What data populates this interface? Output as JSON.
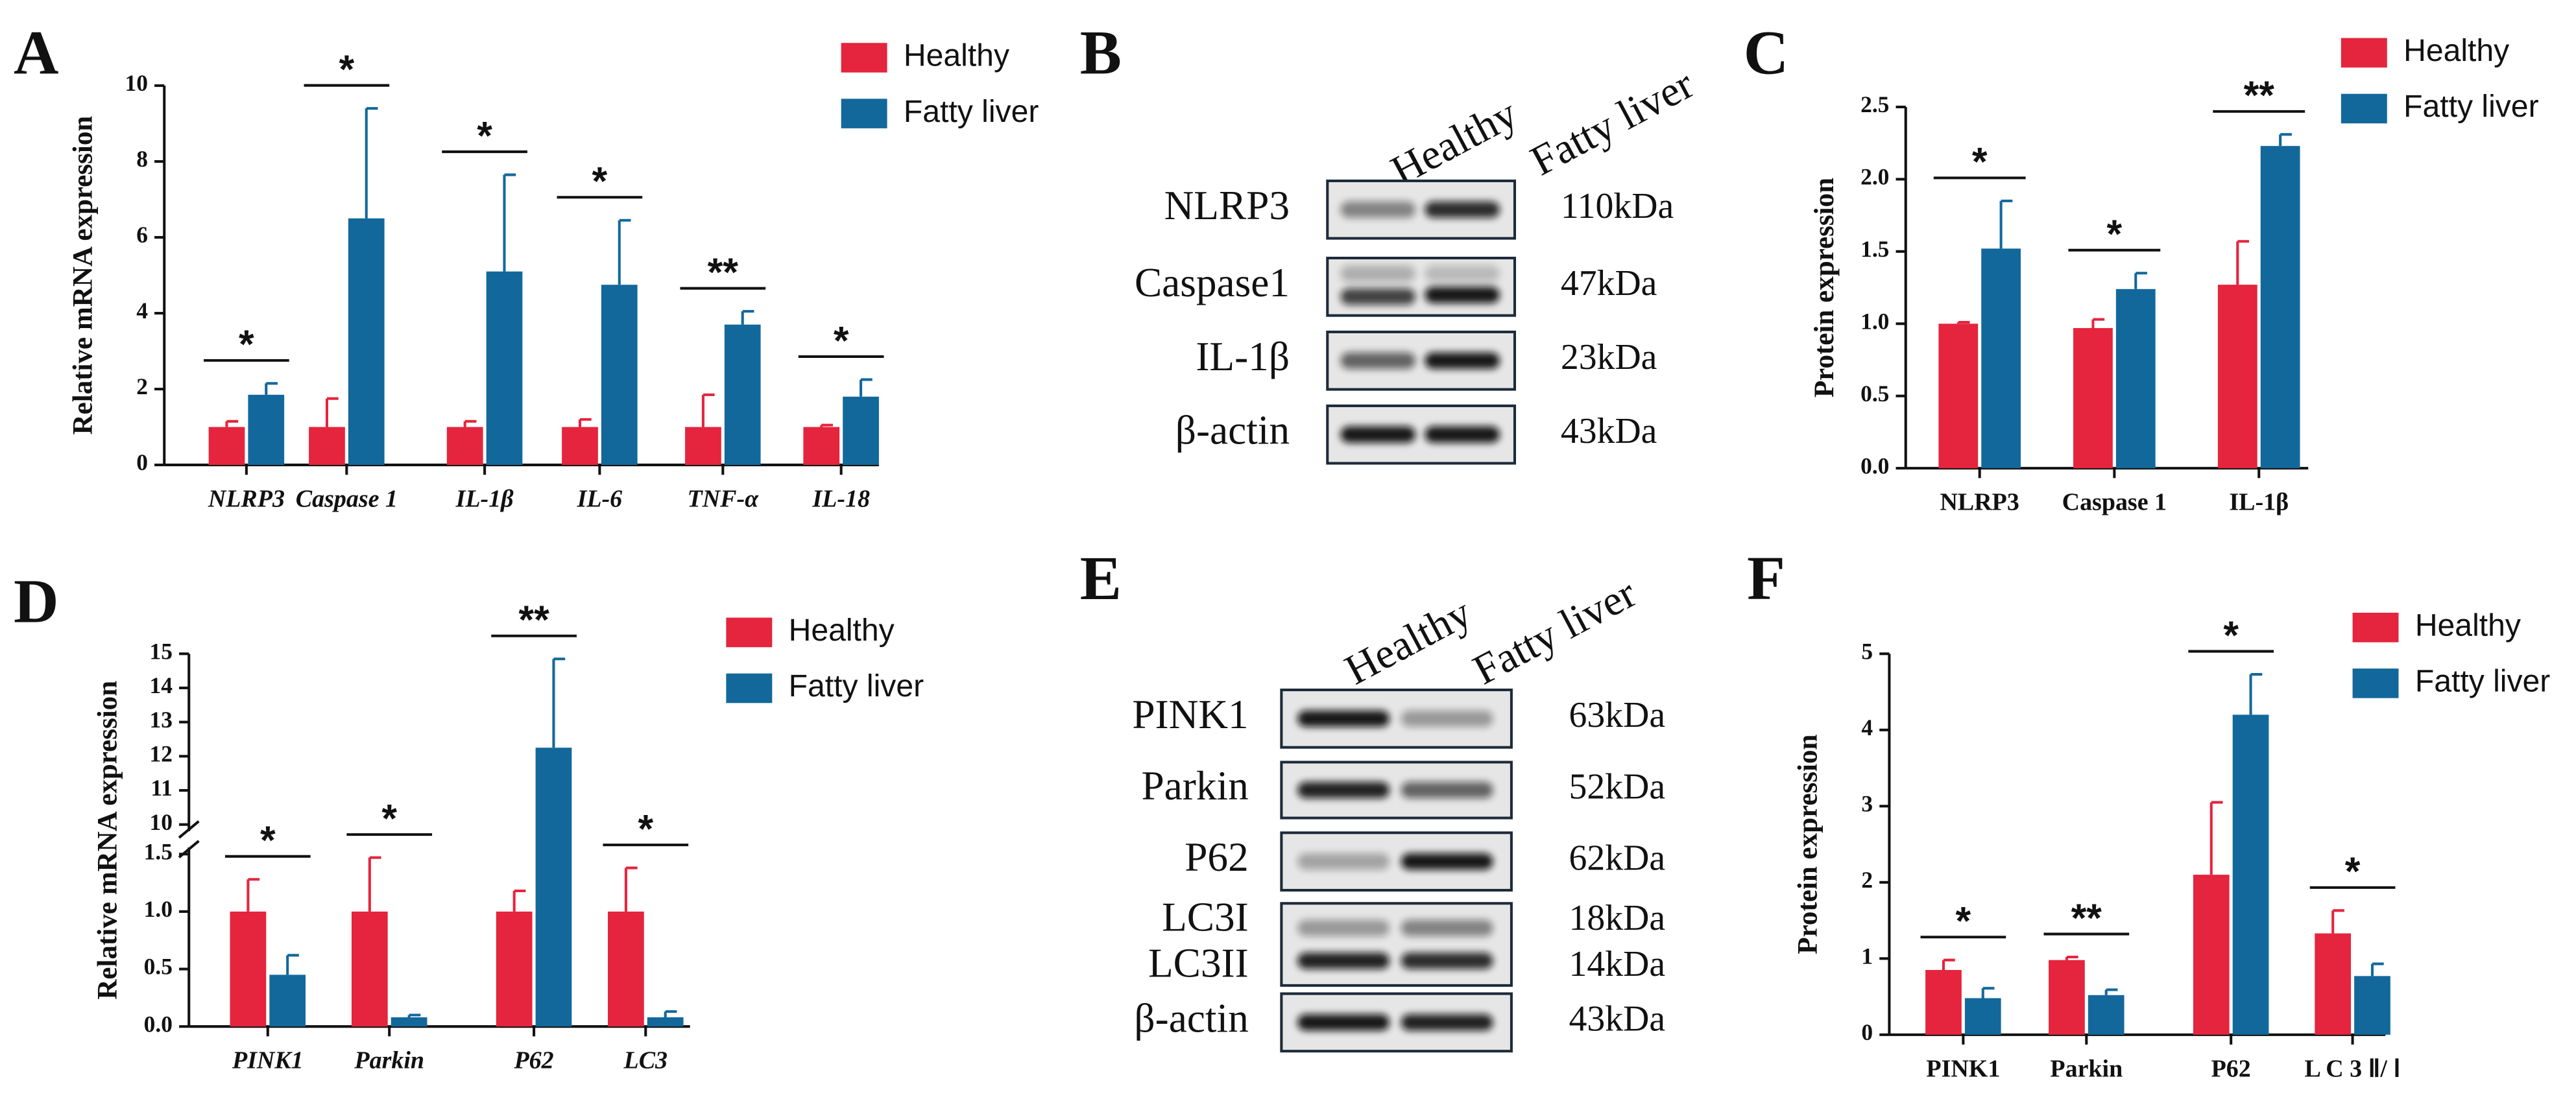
{
  "chart_data": [
    {
      "type": "bar",
      "panel": "A",
      "ylabel": "Relative mRNA expression",
      "categories": [
        "NLRP3",
        "Caspase 1",
        "IL-1β",
        "IL-6",
        "TNF-α",
        "IL-18"
      ],
      "italic_categories": true,
      "series": [
        {
          "name": "Healthy",
          "color": "#e5243d",
          "values": [
            1,
            1,
            1,
            1,
            1,
            1
          ],
          "errors": [
            0.15,
            0.75,
            0.15,
            0.2,
            0.85,
            0.05
          ]
        },
        {
          "name": "Fatty liver",
          "color": "#12689b",
          "values": [
            1.85,
            6.5,
            5.1,
            4.75,
            3.7,
            1.8
          ],
          "errors": [
            0.3,
            2.9,
            2.55,
            1.7,
            0.35,
            0.45
          ]
        }
      ],
      "significance": [
        "*",
        "*",
        "*",
        "*",
        "**",
        "*"
      ],
      "ylim": [
        0,
        10
      ],
      "yticks": [
        0,
        2,
        4,
        6,
        8,
        10
      ]
    },
    {
      "type": "bar",
      "panel": "C",
      "ylabel": "Protein expression",
      "categories": [
        "NLRP3",
        "Caspase 1",
        "IL-1β"
      ],
      "italic_categories": false,
      "series": [
        {
          "name": "Healthy",
          "color": "#e5243d",
          "values": [
            1.0,
            0.97,
            1.27
          ],
          "errors": [
            0.01,
            0.06,
            0.3
          ]
        },
        {
          "name": "Fatty liver",
          "color": "#12689b",
          "values": [
            1.52,
            1.24,
            2.23
          ],
          "errors": [
            0.33,
            0.11,
            0.08
          ]
        }
      ],
      "significance": [
        "*",
        "*",
        "**"
      ],
      "ylim": [
        0,
        2.5
      ],
      "yticks": [
        {
          "value": 0,
          "label": "0.0"
        },
        0.5,
        {
          "value": 1,
          "label": "1.0"
        },
        1.5,
        {
          "value": 2,
          "label": "2.0"
        },
        2.5
      ]
    },
    {
      "type": "bar",
      "panel": "D",
      "ylabel": "Relative mRNA expression",
      "categories": [
        "PINK1",
        "Parkin",
        "P62",
        "LC3"
      ],
      "italic_categories": true,
      "series": [
        {
          "name": "Healthy",
          "color": "#e5243d",
          "values": [
            1,
            1,
            1,
            1
          ],
          "errors": [
            0.28,
            0.47,
            0.18,
            0.38
          ]
        },
        {
          "name": "Fatty liver",
          "color": "#12689b",
          "values": [
            0.45,
            0.08,
            12.25,
            0.08
          ],
          "errors": [
            0.17,
            0.02,
            2.6,
            0.05
          ]
        }
      ],
      "significance": [
        "*",
        "*",
        "**",
        "*"
      ],
      "ylim": [
        0,
        15
      ],
      "ybreak": [
        1.5,
        10
      ],
      "yticks": [
        {
          "value": 0,
          "label": "0.0"
        },
        0.5,
        {
          "value": 1,
          "label": "1.0"
        },
        1.5,
        10,
        11,
        12,
        13,
        14,
        15
      ]
    },
    {
      "type": "bar",
      "panel": "F",
      "ylabel": "Protein expression",
      "categories": [
        "PINK1",
        "Parkin",
        "P62",
        "L C 3 Ⅱ/ Ⅰ"
      ],
      "italic_categories": false,
      "series": [
        {
          "name": "Healthy",
          "color": "#e5243d",
          "values": [
            0.85,
            0.98,
            2.1,
            1.33
          ],
          "errors": [
            0.13,
            0.04,
            0.95,
            0.3
          ]
        },
        {
          "name": "Fatty liver",
          "color": "#12689b",
          "values": [
            0.48,
            0.52,
            4.2,
            0.77
          ],
          "errors": [
            0.13,
            0.07,
            0.53,
            0.16
          ]
        }
      ],
      "significance": [
        "*",
        "**",
        "*",
        "*"
      ],
      "ylim": [
        0,
        5
      ],
      "yticks": [
        0,
        1,
        2,
        3,
        4,
        5
      ]
    }
  ],
  "blots": [
    {
      "panel": "B",
      "lanes": [
        "Healthy",
        "Fatty liver"
      ],
      "rows": [
        {
          "protein": "NLRP3",
          "size": "110kDa"
        },
        {
          "protein": "Caspase1",
          "size": "47kDa"
        },
        {
          "protein": "IL-1β",
          "size": "23kDa"
        },
        {
          "protein": "β-actin",
          "size": "43kDa"
        }
      ]
    },
    {
      "panel": "E",
      "lanes": [
        "Healthy",
        "Fatty liver"
      ],
      "rows": [
        {
          "protein": "PINK1",
          "size": "63kDa"
        },
        {
          "protein": "Parkin",
          "size": "52kDa"
        },
        {
          "protein": "P62",
          "size": "62kDa"
        },
        {
          "protein": "LC3I",
          "size": "18kDa"
        },
        {
          "protein": "LC3II",
          "size": "14kDa"
        },
        {
          "protein": "β-actin",
          "size": "43kDa"
        }
      ]
    }
  ]
}
